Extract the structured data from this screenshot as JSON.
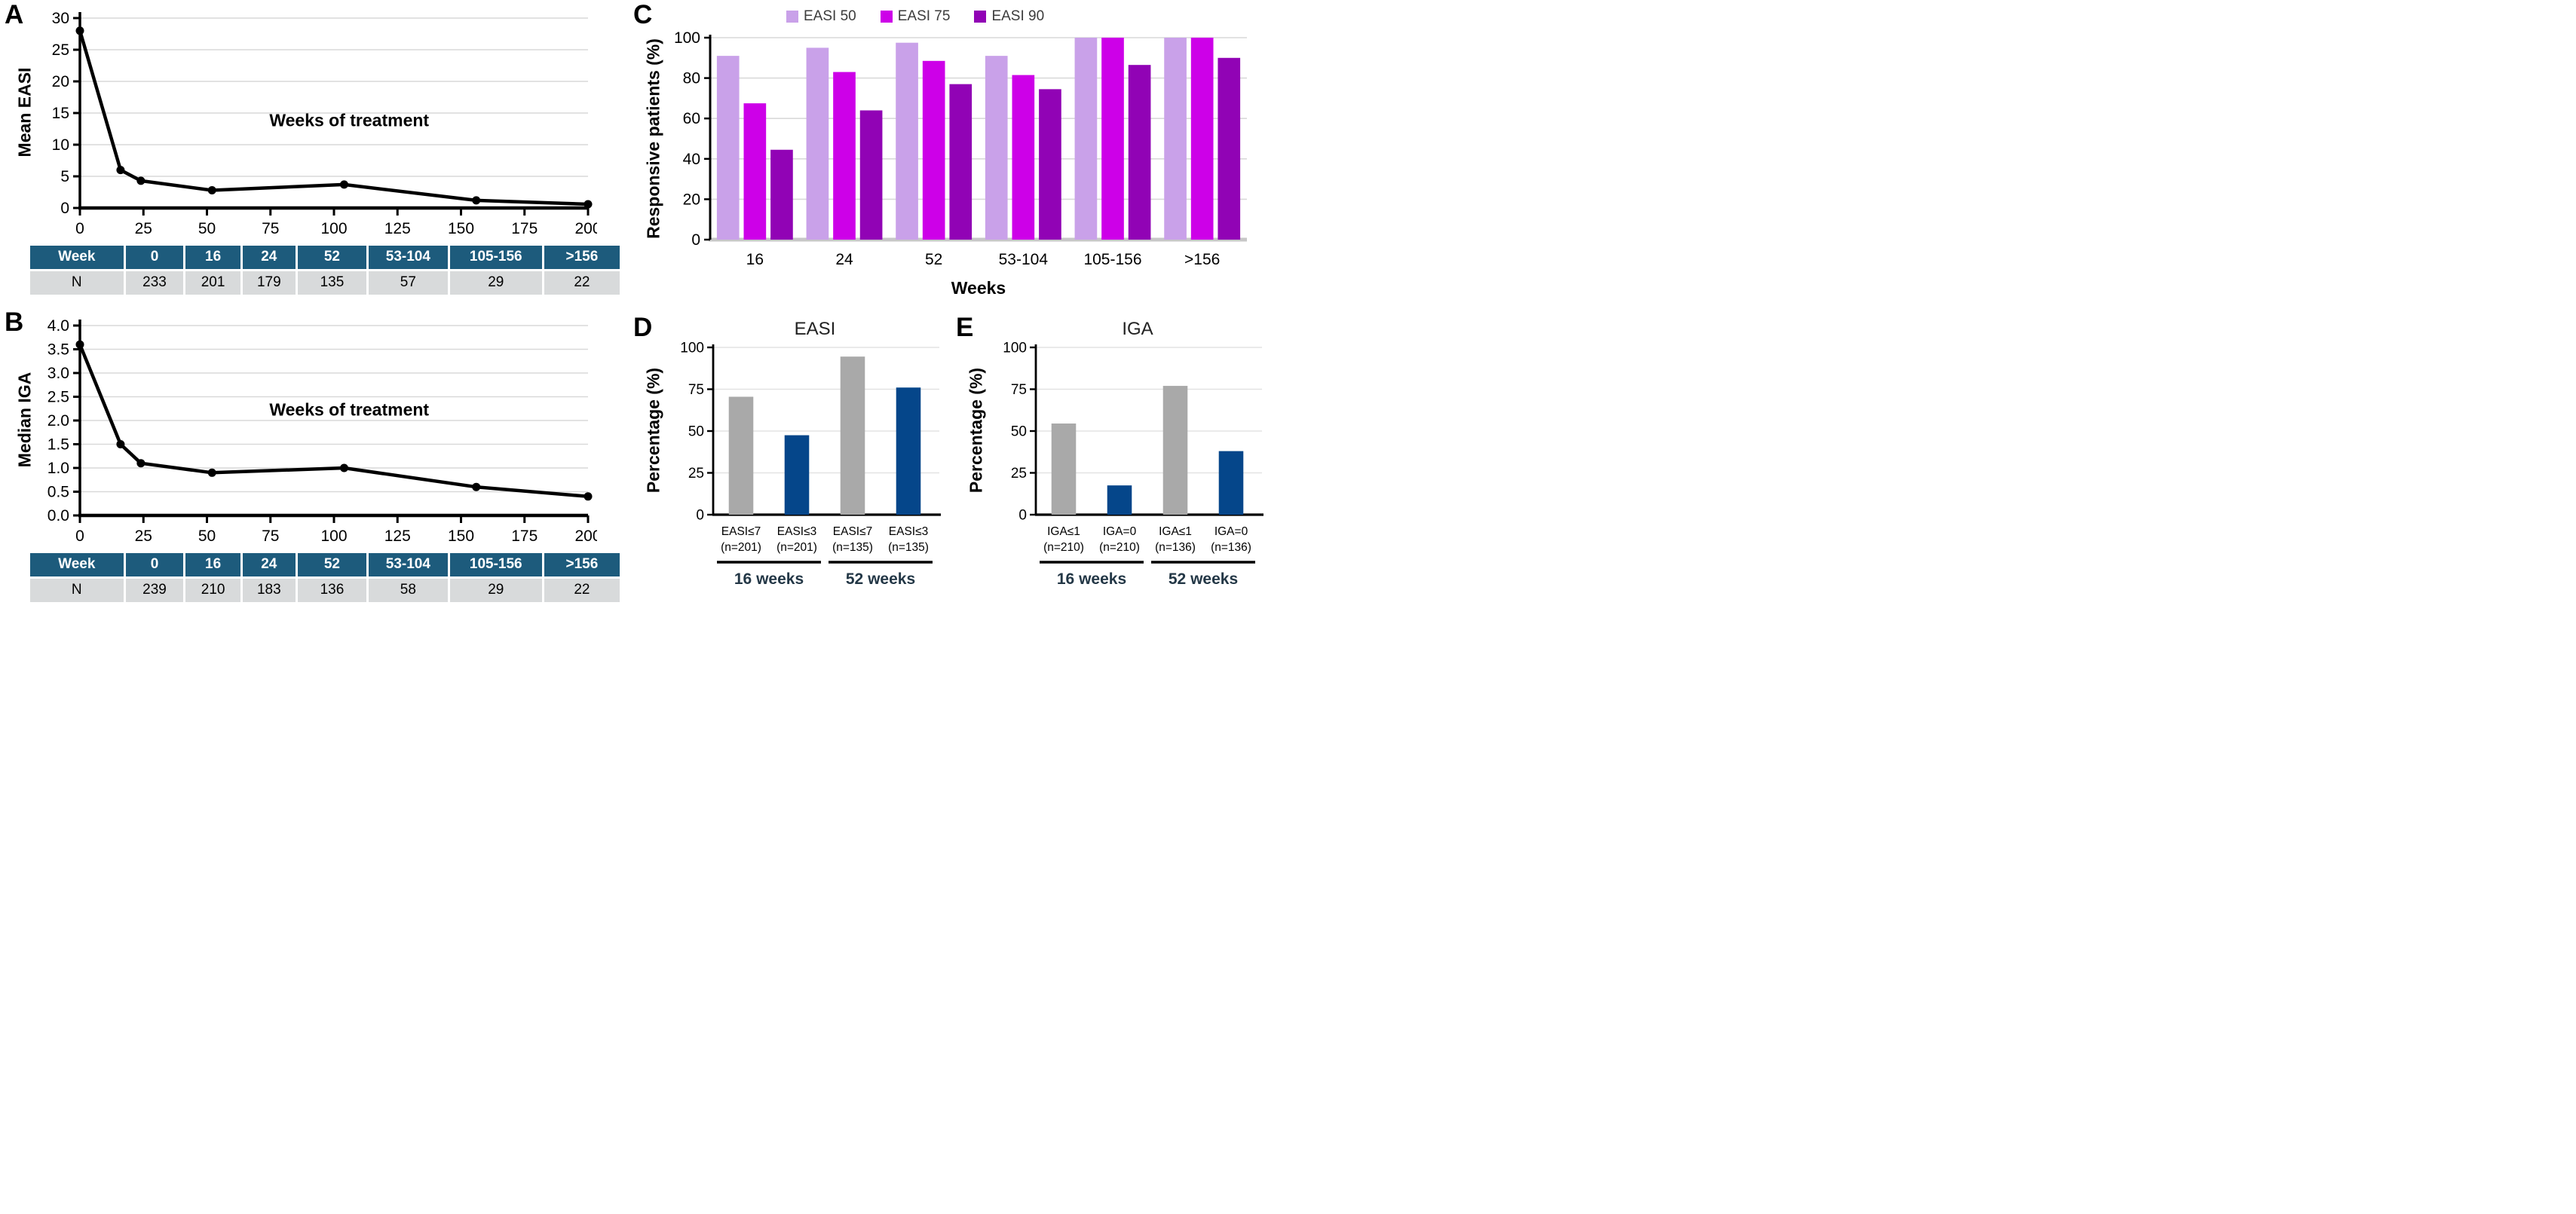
{
  "panels": {
    "a": {
      "letter": "A",
      "ylabel": "Mean EASI",
      "annotation": "Weeks of treatment"
    },
    "b": {
      "letter": "B",
      "ylabel": "Median IGA",
      "annotation": "Weeks of treatment"
    },
    "c": {
      "letter": "C",
      "ylabel": "Responsive patients (%)",
      "xlabel": "Weeks"
    },
    "d": {
      "letter": "D",
      "title": "EASI",
      "ylabel": "Percentage (%)"
    },
    "e": {
      "letter": "E",
      "title": "IGA",
      "ylabel": "Percentage (%)"
    }
  },
  "chart_data": [
    {
      "id": "A",
      "type": "line",
      "ylabel": "Mean EASI",
      "annotation": {
        "text": "Weeks of treatment",
        "x": 106,
        "y": 12.9
      },
      "x": [
        0,
        16,
        24,
        52,
        104,
        156,
        200
      ],
      "y": [
        28,
        6,
        4.3,
        2.8,
        3.7,
        1.2,
        0.6
      ],
      "xlim": [
        0,
        200
      ],
      "ylim": [
        0,
        30
      ],
      "xticks": [
        0,
        25,
        50,
        75,
        100,
        125,
        150,
        175,
        200
      ],
      "yticks": [
        0,
        5,
        10,
        15,
        20,
        25,
        30
      ],
      "ytick_decimals": 0,
      "grid": true,
      "table": {
        "header_row": [
          "Week",
          "0",
          "16",
          "24",
          "52",
          "53-104",
          "105-156",
          ">156"
        ],
        "data_row": [
          "N",
          "233",
          "201",
          "179",
          "135",
          "57",
          "29",
          "22"
        ]
      }
    },
    {
      "id": "B",
      "type": "line",
      "ylabel": "Median IGA",
      "annotation": {
        "text": "Weeks of treatment",
        "x": 106,
        "y": 2.1
      },
      "x": [
        0,
        16,
        24,
        52,
        104,
        156,
        200
      ],
      "y": [
        3.6,
        1.5,
        1.1,
        0.9,
        1.0,
        0.6,
        0.4
      ],
      "xlim": [
        0,
        200
      ],
      "ylim": [
        0,
        4
      ],
      "xticks": [
        0,
        25,
        50,
        75,
        100,
        125,
        150,
        175,
        200
      ],
      "yticks": [
        0,
        0.5,
        1,
        1.5,
        2,
        2.5,
        3,
        3.5,
        4
      ],
      "ytick_decimals": 1,
      "grid": true,
      "table": {
        "header_row": [
          "Week",
          "0",
          "16",
          "24",
          "52",
          "53-104",
          "105-156",
          ">156"
        ],
        "data_row": [
          "N",
          "239",
          "210",
          "183",
          "136",
          "58",
          "29",
          "22"
        ]
      }
    },
    {
      "id": "C",
      "type": "bar",
      "ylabel": "Responsive patients (%)",
      "xlabel": "Weeks",
      "categories": [
        "16",
        "24",
        "52",
        "53-104",
        "105-156",
        ">156"
      ],
      "series": [
        {
          "name": "EASI 50",
          "color": "#c9a1e9",
          "values": [
            91,
            95,
            97.5,
            91,
            100,
            100
          ]
        },
        {
          "name": "EASI 75",
          "color": "#cd00e8",
          "values": [
            67.5,
            83,
            88.5,
            81.5,
            100,
            100
          ]
        },
        {
          "name": "EASI 90",
          "color": "#9103b5",
          "values": [
            44.5,
            64,
            77,
            74.5,
            86.5,
            90
          ]
        }
      ],
      "ylim": [
        0,
        100
      ],
      "yticks": [
        0,
        20,
        40,
        60,
        80,
        100
      ],
      "ytick_decimals": 0,
      "grid": true,
      "legend_position": "top"
    },
    {
      "id": "D",
      "type": "bar",
      "title": "EASI",
      "ylabel": "Percentage (%)",
      "categories": [
        {
          "line1": "EASI≤7",
          "line2": "(n=201)"
        },
        {
          "line1": "EASI≤3",
          "line2": "(n=201)"
        },
        {
          "line1": "EASI≤7",
          "line2": "(n=135)"
        },
        {
          "line1": "EASI≤3",
          "line2": "(n=135)"
        }
      ],
      "values": [
        70.5,
        47.5,
        94.5,
        76
      ],
      "bar_colors": [
        "#a9a9a9",
        "#05468a",
        "#a9a9a9",
        "#05468a"
      ],
      "groups": [
        {
          "label": "16 weeks",
          "from": 0,
          "to": 1
        },
        {
          "label": "52 weeks",
          "from": 2,
          "to": 3
        }
      ],
      "ylim": [
        0,
        100
      ],
      "yticks": [
        0,
        25,
        50,
        75,
        100
      ],
      "ytick_decimals": 0,
      "grid": true
    },
    {
      "id": "E",
      "type": "bar",
      "title": "IGA",
      "ylabel": "Percentage (%)",
      "categories": [
        {
          "line1": "IGA≤1",
          "line2": "(n=210)"
        },
        {
          "line1": "IGA=0",
          "line2": "(n=210)"
        },
        {
          "line1": "IGA≤1",
          "line2": "(n=136)"
        },
        {
          "line1": "IGA=0",
          "line2": "(n=136)"
        }
      ],
      "values": [
        54.5,
        17.5,
        77,
        38
      ],
      "bar_colors": [
        "#a9a9a9",
        "#05468a",
        "#a9a9a9",
        "#05468a"
      ],
      "groups": [
        {
          "label": "16 weeks",
          "from": 0,
          "to": 1
        },
        {
          "label": "52 weeks",
          "from": 2,
          "to": 3
        }
      ],
      "ylim": [
        0,
        100
      ],
      "yticks": [
        0,
        25,
        50,
        75,
        100
      ],
      "ytick_decimals": 0,
      "grid": true
    }
  ],
  "colors": {
    "table_header_bg": "#1d5b7c",
    "table_header_text": "#ffffff",
    "table_row_bg": "#d8dadb",
    "grid": "#d9d9d9",
    "axis": "#000000",
    "baseline_gray": "#c7c7c7",
    "line": "#000000",
    "group_label": "#233746",
    "bar_gray": "#a9a9a9",
    "bar_blue": "#05468a",
    "easi50": "#c9a1e9",
    "easi75": "#cd00e8",
    "easi90": "#9103b5"
  }
}
